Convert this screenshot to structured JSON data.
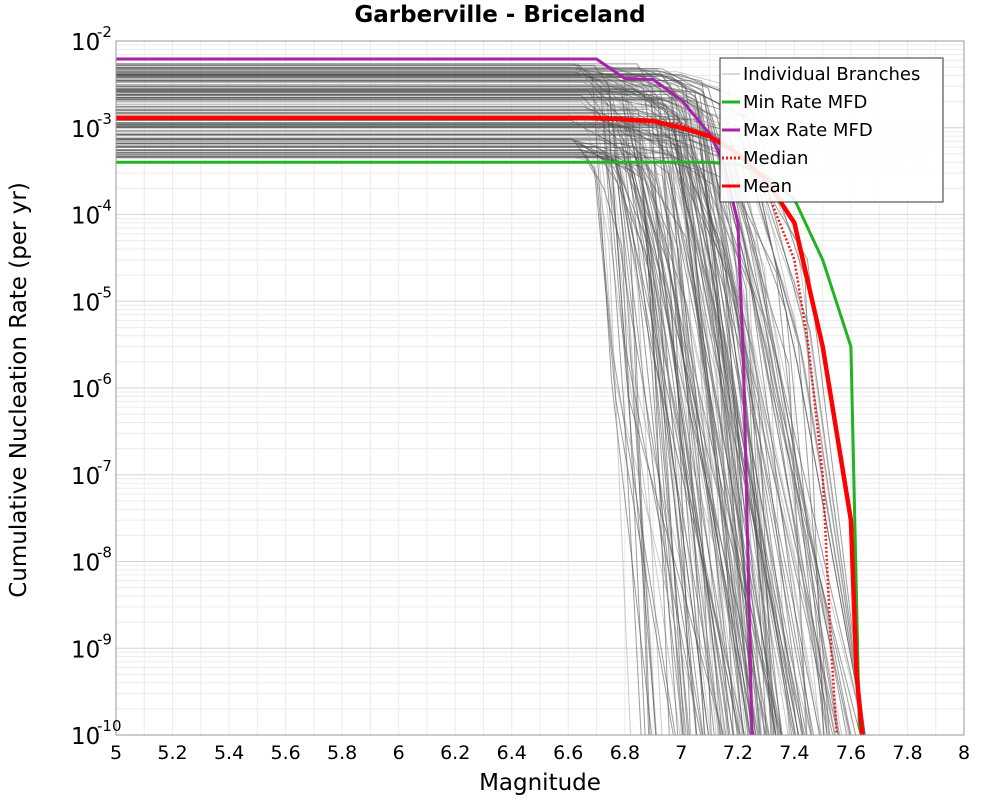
{
  "chart_data": {
    "type": "line",
    "title": "Garberville - Briceland",
    "xlabel": "Magnitude",
    "ylabel": "Cumulative Nucleation Rate (per yr)",
    "xlim": [
      5,
      8
    ],
    "ylim": [
      1e-10,
      0.01
    ],
    "y_scale": "log",
    "x_ticks": [
      "5",
      "5.2",
      "5.4",
      "5.6",
      "5.8",
      "6",
      "6.2",
      "6.4",
      "6.6",
      "6.8",
      "7",
      "7.2",
      "7.4",
      "7.6",
      "7.8",
      "8"
    ],
    "y_ticks": [
      {
        "base": "10",
        "exp": "-10",
        "value": 1e-10
      },
      {
        "base": "10",
        "exp": "-9",
        "value": 1e-09
      },
      {
        "base": "10",
        "exp": "-8",
        "value": 1e-08
      },
      {
        "base": "10",
        "exp": "-7",
        "value": 1e-07
      },
      {
        "base": "10",
        "exp": "-6",
        "value": 1e-06
      },
      {
        "base": "10",
        "exp": "-5",
        "value": 1e-05
      },
      {
        "base": "10",
        "exp": "-4",
        "value": 0.0001
      },
      {
        "base": "10",
        "exp": "-3",
        "value": 0.001
      },
      {
        "base": "10",
        "exp": "-2",
        "value": 0.01
      }
    ],
    "grid": true,
    "legend_position": "top-right",
    "legend": [
      {
        "label": "Individual Branches",
        "color": "#b0b0b0",
        "style": "solid"
      },
      {
        "label": "Min Rate MFD",
        "color": "#22b322",
        "style": "solid"
      },
      {
        "label": "Max Rate MFD",
        "color": "#aa22aa",
        "style": "solid"
      },
      {
        "label": "Median",
        "color": "#e82020",
        "style": "dotted"
      },
      {
        "label": "Mean",
        "color": "#ff0000",
        "style": "solid"
      }
    ],
    "branch_envelope": {
      "count": 180,
      "rate_min": 0.00045,
      "rate_max": 0.0055,
      "cutoff_mag_range": [
        6.75,
        7.65
      ],
      "color": "#4d4d4d"
    },
    "series": [
      {
        "name": "Min Rate MFD",
        "color": "#22b322",
        "x": [
          5.0,
          7.1,
          7.2,
          7.3,
          7.4,
          7.5,
          7.6,
          7.63,
          7.64
        ],
        "y": [
          0.0004,
          0.0004,
          0.00038,
          0.00028,
          0.00015,
          3e-05,
          3e-06,
          1.2e-10,
          1e-10
        ]
      },
      {
        "name": "Max Rate MFD",
        "color": "#aa22aa",
        "x": [
          5.0,
          6.7,
          6.8,
          6.9,
          7.0,
          7.1,
          7.15,
          7.2,
          7.22,
          7.25
        ],
        "y": [
          0.0062,
          0.0062,
          0.0037,
          0.0036,
          0.0021,
          0.00085,
          0.0004,
          8e-05,
          2e-06,
          1e-10
        ]
      },
      {
        "name": "Median",
        "color": "#e82020",
        "x": [
          5.0,
          6.6,
          7.0,
          7.1,
          7.2,
          7.3,
          7.4,
          7.45,
          7.5,
          7.53,
          7.55
        ],
        "y": [
          0.0013,
          0.0013,
          0.0011,
          0.0008,
          0.0005,
          0.0002,
          3e-05,
          3e-06,
          1e-07,
          1e-09,
          1e-10
        ]
      },
      {
        "name": "Mean",
        "color": "#ff0000",
        "x": [
          5.0,
          6.7,
          6.9,
          7.0,
          7.1,
          7.2,
          7.3,
          7.4,
          7.5,
          7.6,
          7.62,
          7.64
        ],
        "y": [
          0.0013,
          0.0013,
          0.0012,
          0.001,
          0.0008,
          0.0005,
          0.00025,
          8e-05,
          3e-06,
          3e-08,
          5e-10,
          1e-10
        ]
      }
    ]
  }
}
